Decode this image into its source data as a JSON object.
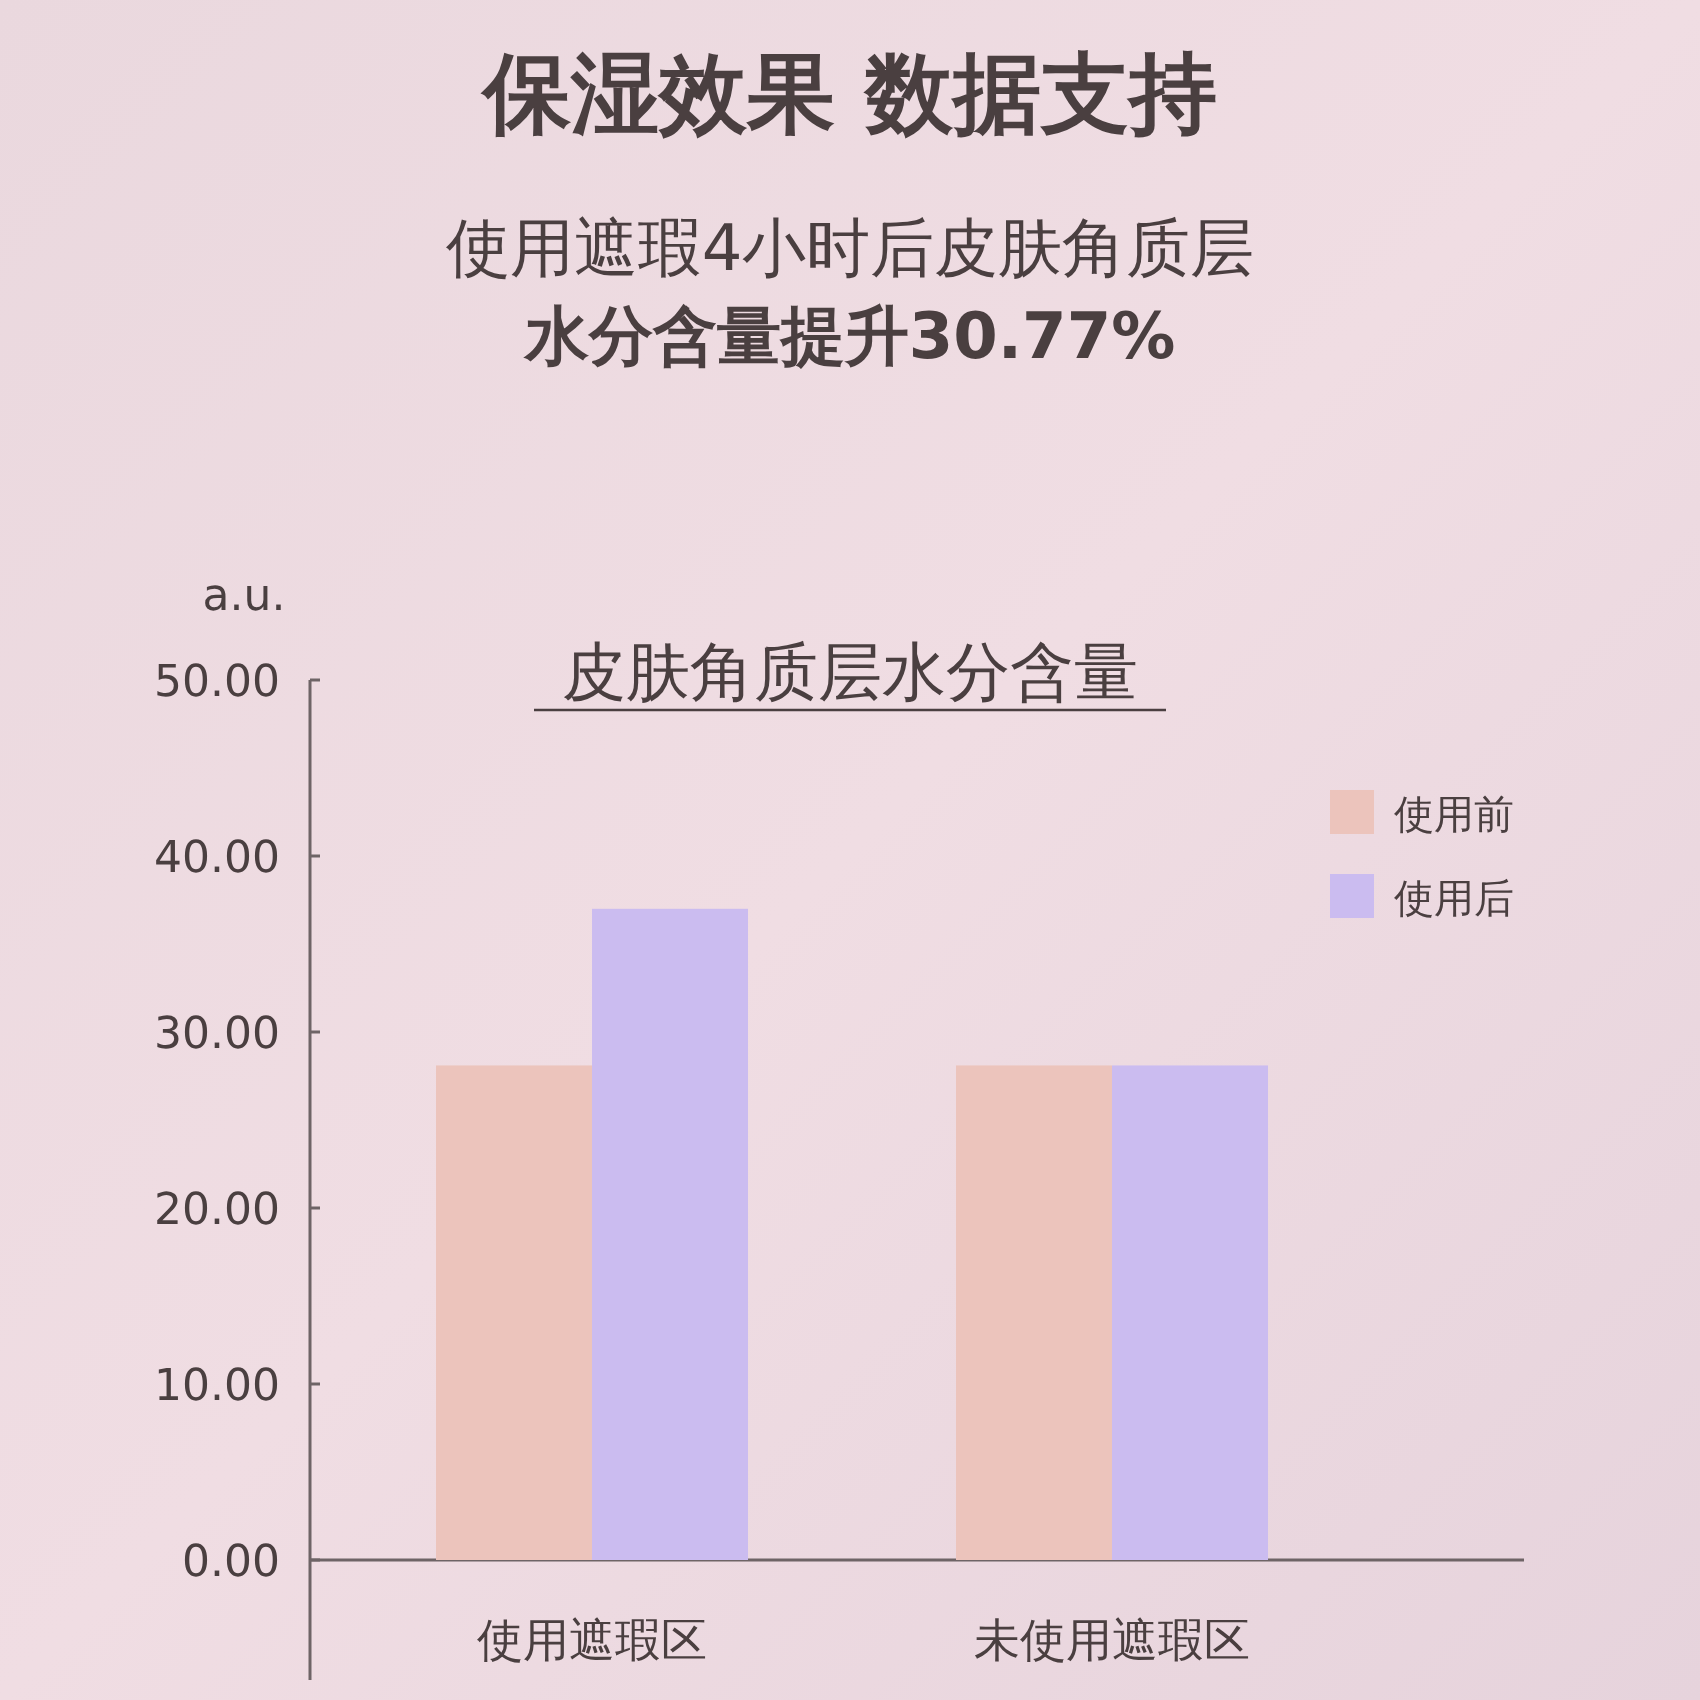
{
  "chart_data": {
    "type": "bar",
    "title": "保湿效果 数据支持",
    "subtitle": "使用遮瑕4小时后皮肤角质层水分含量提升30.77%",
    "ylabel": "a.u.",
    "annotations": [
      "皮肤角质层水分含量"
    ],
    "categories": [
      "使用遮瑕区",
      "未使用遮瑕区"
    ],
    "series": [
      {
        "name": "使用前",
        "color": "#ecc4bc",
        "values": [
          28.1,
          28.1
        ]
      },
      {
        "name": "使用后",
        "color": "#cbbcf0",
        "values": [
          37.0,
          28.1
        ]
      }
    ],
    "ylim": [
      0,
      50
    ],
    "yticks": [
      {
        "value": 0,
        "label": "0.00"
      },
      {
        "value": 10,
        "label": "10.00"
      },
      {
        "value": 20,
        "label": "20.00"
      },
      {
        "value": 30,
        "label": "30.00"
      },
      {
        "value": 40,
        "label": "40.00"
      },
      {
        "value": 50,
        "label": "50.00"
      }
    ],
    "grid": false,
    "legend": "top right"
  }
}
